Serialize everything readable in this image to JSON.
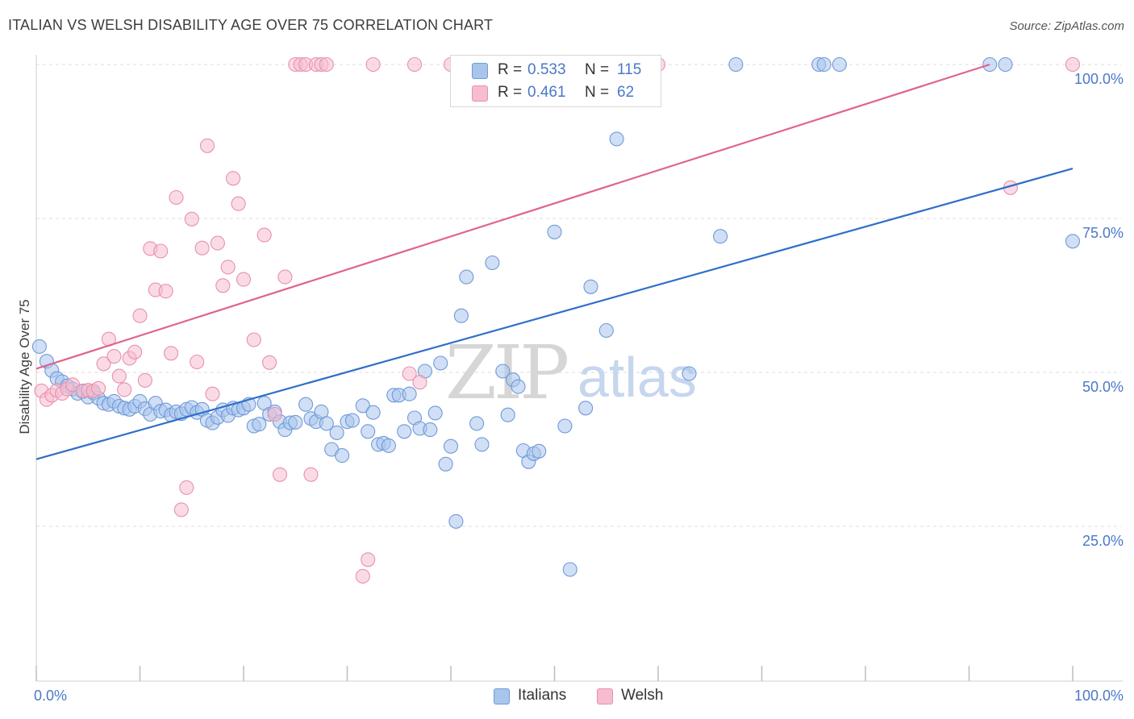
{
  "title": "ITALIAN VS WELSH DISABILITY AGE OVER 75 CORRELATION CHART",
  "source": "Source: ZipAtlas.com",
  "watermark": {
    "zip": "ZIP",
    "atlas": "atlas"
  },
  "stats": [
    {
      "r_label": "R =",
      "r_value": "0.533",
      "n_label": "N =",
      "n_value": "115",
      "color": "#a9c5ec",
      "border": "#6f9ad8"
    },
    {
      "r_label": "R =",
      "r_value": "0.461",
      "n_label": "N =",
      "n_value": "62",
      "color": "#f6bdd0",
      "border": "#e890ae"
    }
  ],
  "legend": [
    {
      "label": "Italians",
      "color": "#a9c5ec",
      "border": "#6f9ad8"
    },
    {
      "label": "Welsh",
      "color": "#f6bdd0",
      "border": "#e890ae"
    }
  ],
  "chart_data": {
    "type": "scatter",
    "title": "ITALIAN VS WELSH DISABILITY AGE OVER 75 CORRELATION CHART",
    "xlabel": "",
    "ylabel": "Disability Age Over 75",
    "xlim": [
      0,
      100
    ],
    "ylim": [
      0,
      105
    ],
    "x_tick_labels": [
      {
        "value": 0,
        "label": "0.0%"
      },
      {
        "value": 100,
        "label": "100.0%"
      }
    ],
    "y_tick_labels": [
      {
        "value": 100,
        "label": "100.0%"
      },
      {
        "value": 75,
        "label": "75.0%"
      },
      {
        "value": 50,
        "label": "50.0%"
      },
      {
        "value": 25,
        "label": "25.0%"
      }
    ],
    "x_minor_ticks": [
      0,
      10,
      20,
      30,
      40,
      50,
      60,
      70,
      80,
      90,
      100
    ],
    "grid": true,
    "legend_position": "bottom-center",
    "series": [
      {
        "name": "Italians",
        "color": "#6f9ad8",
        "fill": "#a9c5ec",
        "trend": {
          "x": [
            0,
            100
          ],
          "y": [
            35.9,
            83.1
          ],
          "color": "#2f6fc9"
        },
        "points": [
          [
            0.3,
            54.2
          ],
          [
            1.0,
            51.8
          ],
          [
            1.5,
            50.3
          ],
          [
            2.0,
            49.0
          ],
          [
            2.5,
            48.5
          ],
          [
            3.0,
            47.8
          ],
          [
            3.5,
            47.3
          ],
          [
            4.0,
            46.6
          ],
          [
            4.5,
            46.9
          ],
          [
            5.0,
            46.0
          ],
          [
            5.5,
            46.7
          ],
          [
            6.0,
            45.8
          ],
          [
            6.5,
            45.0
          ],
          [
            7.0,
            44.8
          ],
          [
            7.5,
            45.3
          ],
          [
            8.0,
            44.5
          ],
          [
            8.5,
            44.2
          ],
          [
            9.0,
            44.0
          ],
          [
            9.5,
            44.5
          ],
          [
            10.0,
            45.3
          ],
          [
            10.5,
            44.1
          ],
          [
            11.0,
            43.2
          ],
          [
            11.5,
            45.0
          ],
          [
            12.0,
            43.7
          ],
          [
            12.5,
            43.9
          ],
          [
            13.0,
            43.1
          ],
          [
            13.5,
            43.6
          ],
          [
            14.0,
            43.3
          ],
          [
            14.5,
            44.0
          ],
          [
            15.0,
            44.3
          ],
          [
            15.5,
            43.5
          ],
          [
            16.0,
            44.0
          ],
          [
            16.5,
            42.2
          ],
          [
            17.0,
            41.8
          ],
          [
            17.5,
            42.7
          ],
          [
            18.0,
            43.9
          ],
          [
            18.5,
            43.0
          ],
          [
            19.0,
            44.2
          ],
          [
            19.5,
            43.9
          ],
          [
            20.0,
            44.2
          ],
          [
            20.5,
            44.8
          ],
          [
            21.0,
            41.3
          ],
          [
            21.5,
            41.6
          ],
          [
            22.0,
            45.0
          ],
          [
            22.5,
            43.2
          ],
          [
            23.0,
            43.6
          ],
          [
            23.5,
            42.0
          ],
          [
            24.0,
            40.7
          ],
          [
            24.5,
            41.8
          ],
          [
            25.0,
            41.9
          ],
          [
            26.0,
            44.8
          ],
          [
            26.5,
            42.5
          ],
          [
            27.0,
            42.0
          ],
          [
            27.5,
            43.6
          ],
          [
            28.0,
            41.7
          ],
          [
            28.5,
            37.5
          ],
          [
            29.0,
            40.2
          ],
          [
            29.5,
            36.5
          ],
          [
            30.0,
            42.0
          ],
          [
            30.5,
            42.2
          ],
          [
            31.5,
            44.6
          ],
          [
            32.0,
            40.4
          ],
          [
            32.5,
            43.5
          ],
          [
            33.0,
            38.3
          ],
          [
            33.5,
            38.5
          ],
          [
            34.0,
            38.1
          ],
          [
            34.5,
            46.3
          ],
          [
            35.0,
            46.3
          ],
          [
            35.5,
            40.4
          ],
          [
            36.0,
            46.5
          ],
          [
            36.5,
            42.6
          ],
          [
            37.0,
            40.9
          ],
          [
            37.5,
            50.2
          ],
          [
            38.0,
            40.7
          ],
          [
            38.5,
            43.4
          ],
          [
            39.0,
            51.5
          ],
          [
            39.5,
            35.1
          ],
          [
            40.0,
            38.0
          ],
          [
            40.5,
            25.8
          ],
          [
            41.0,
            59.2
          ],
          [
            41.5,
            65.5
          ],
          [
            42.5,
            41.7
          ],
          [
            43.0,
            38.3
          ],
          [
            44.0,
            67.8
          ],
          [
            45.0,
            50.2
          ],
          [
            45.5,
            43.1
          ],
          [
            46.0,
            48.8
          ],
          [
            46.5,
            47.7
          ],
          [
            47.0,
            37.3
          ],
          [
            47.5,
            35.5
          ],
          [
            48.0,
            36.8
          ],
          [
            48.5,
            37.2
          ],
          [
            50.0,
            72.8
          ],
          [
            51.0,
            41.3
          ],
          [
            51.5,
            18.0
          ],
          [
            53.0,
            44.2
          ],
          [
            53.5,
            63.9
          ],
          [
            54.5,
            100.0
          ],
          [
            55.5,
            100.0
          ],
          [
            55.0,
            56.8
          ],
          [
            56.0,
            87.9
          ],
          [
            57.5,
            100.0
          ],
          [
            58.0,
            100.0
          ],
          [
            63.0,
            49.8
          ],
          [
            66.0,
            72.1
          ],
          [
            67.5,
            100.0
          ],
          [
            75.5,
            100.0
          ],
          [
            76.0,
            100.0
          ],
          [
            77.5,
            100.0
          ],
          [
            92.0,
            100.0
          ],
          [
            93.5,
            100.0
          ],
          [
            100.0,
            71.3
          ],
          [
            56.5,
            100.0
          ],
          [
            57.0,
            100.0
          ],
          [
            53.0,
            100.0
          ]
        ]
      },
      {
        "name": "Welsh",
        "color": "#e890ae",
        "fill": "#f6bdd0",
        "trend": {
          "x": [
            0,
            92
          ],
          "y": [
            50.6,
            100.0
          ],
          "color": "#e0638c"
        },
        "points": [
          [
            0.5,
            47.0
          ],
          [
            1.0,
            45.6
          ],
          [
            1.5,
            46.3
          ],
          [
            2.0,
            47.1
          ],
          [
            2.5,
            46.6
          ],
          [
            3.0,
            47.3
          ],
          [
            3.5,
            48.0
          ],
          [
            4.5,
            47.0
          ],
          [
            5.0,
            47.1
          ],
          [
            5.5,
            47.0
          ],
          [
            6.0,
            47.4
          ],
          [
            6.5,
            51.4
          ],
          [
            7.0,
            55.4
          ],
          [
            7.5,
            52.6
          ],
          [
            8.0,
            49.4
          ],
          [
            8.5,
            47.2
          ],
          [
            9.0,
            52.3
          ],
          [
            9.5,
            53.3
          ],
          [
            10.0,
            59.2
          ],
          [
            10.5,
            48.7
          ],
          [
            11.0,
            70.1
          ],
          [
            11.5,
            63.4
          ],
          [
            12.0,
            69.7
          ],
          [
            12.5,
            63.2
          ],
          [
            13.0,
            53.1
          ],
          [
            13.5,
            78.4
          ],
          [
            14.0,
            27.7
          ],
          [
            14.5,
            31.3
          ],
          [
            15.0,
            74.9
          ],
          [
            15.5,
            51.7
          ],
          [
            16.0,
            70.2
          ],
          [
            16.5,
            86.8
          ],
          [
            17.0,
            46.5
          ],
          [
            17.5,
            71.0
          ],
          [
            18.0,
            64.1
          ],
          [
            18.5,
            67.1
          ],
          [
            19.0,
            81.5
          ],
          [
            19.5,
            77.4
          ],
          [
            20.0,
            65.1
          ],
          [
            21.0,
            55.3
          ],
          [
            22.0,
            72.3
          ],
          [
            22.5,
            51.6
          ],
          [
            23.0,
            43.2
          ],
          [
            23.5,
            33.4
          ],
          [
            24.0,
            65.5
          ],
          [
            25.0,
            100.0
          ],
          [
            25.5,
            100.0
          ],
          [
            26.0,
            100.0
          ],
          [
            26.5,
            33.4
          ],
          [
            27.0,
            100.0
          ],
          [
            27.5,
            100.0
          ],
          [
            28.0,
            100.0
          ],
          [
            31.5,
            16.9
          ],
          [
            32.0,
            19.6
          ],
          [
            32.5,
            100.0
          ],
          [
            36.5,
            100.0
          ],
          [
            36.0,
            49.8
          ],
          [
            37.0,
            48.4
          ],
          [
            40.0,
            100.0
          ],
          [
            60.0,
            100.0
          ],
          [
            94.0,
            80.0
          ],
          [
            100.0,
            100.0
          ]
        ]
      }
    ]
  }
}
